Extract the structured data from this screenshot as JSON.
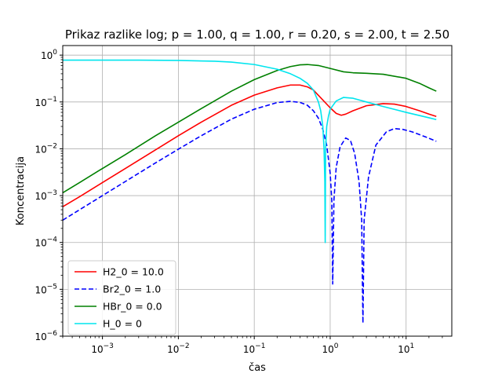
{
  "chart_data": {
    "type": "line",
    "title": "Prikaz razlike log; p = 1.00, q = 1.00, r = 0.20, s = 2.00, t = 2.50",
    "xlabel": "čas",
    "ylabel": "Koncentracija",
    "xscale": "log",
    "yscale": "log",
    "xlim": [
      0.0003,
      40
    ],
    "ylim": [
      1e-06,
      1.6
    ],
    "grid": true,
    "legend_position": "lower-left",
    "x_ticks": [
      {
        "value": 0.001,
        "base": "10",
        "exp": "−3"
      },
      {
        "value": 0.01,
        "base": "10",
        "exp": "−2"
      },
      {
        "value": 0.1,
        "base": "10",
        "exp": "−1"
      },
      {
        "value": 1,
        "base": "10",
        "exp": "0"
      },
      {
        "value": 10,
        "base": "10",
        "exp": "1"
      }
    ],
    "y_ticks": [
      {
        "value": 1e-06,
        "base": "10",
        "exp": "−6"
      },
      {
        "value": 1e-05,
        "base": "10",
        "exp": "−5"
      },
      {
        "value": 0.0001,
        "base": "10",
        "exp": "−4"
      },
      {
        "value": 0.001,
        "base": "10",
        "exp": "−3"
      },
      {
        "value": 0.01,
        "base": "10",
        "exp": "−2"
      },
      {
        "value": 0.1,
        "base": "10",
        "exp": "−1"
      },
      {
        "value": 1,
        "base": "10",
        "exp": "0"
      }
    ],
    "series": [
      {
        "name": "H2_0 = 10.0",
        "color": "#ff0000",
        "dash": "solid",
        "points": [
          [
            0.0003,
            0.00058
          ],
          [
            0.0005,
            0.00095
          ],
          [
            0.001,
            0.0019
          ],
          [
            0.002,
            0.0038
          ],
          [
            0.005,
            0.0095
          ],
          [
            0.01,
            0.019
          ],
          [
            0.02,
            0.037
          ],
          [
            0.05,
            0.085
          ],
          [
            0.1,
            0.14
          ],
          [
            0.2,
            0.2
          ],
          [
            0.3,
            0.23
          ],
          [
            0.4,
            0.23
          ],
          [
            0.5,
            0.21
          ],
          [
            0.6,
            0.18
          ],
          [
            0.8,
            0.11
          ],
          [
            1.0,
            0.075
          ],
          [
            1.2,
            0.057
          ],
          [
            1.4,
            0.052
          ],
          [
            1.6,
            0.055
          ],
          [
            2.0,
            0.065
          ],
          [
            3.0,
            0.083
          ],
          [
            5.0,
            0.092
          ],
          [
            7.0,
            0.09
          ],
          [
            10,
            0.08
          ],
          [
            15,
            0.065
          ],
          [
            20,
            0.055
          ],
          [
            25,
            0.049
          ]
        ]
      },
      {
        "name": " Br2_0 = 1.0",
        "color": "#0000ff",
        "dash": "dashed",
        "points": [
          [
            0.0003,
            0.0003
          ],
          [
            0.0005,
            0.0005
          ],
          [
            0.001,
            0.001
          ],
          [
            0.002,
            0.002
          ],
          [
            0.005,
            0.005
          ],
          [
            0.01,
            0.0098
          ],
          [
            0.02,
            0.019
          ],
          [
            0.05,
            0.043
          ],
          [
            0.1,
            0.07
          ],
          [
            0.2,
            0.097
          ],
          [
            0.3,
            0.103
          ],
          [
            0.4,
            0.098
          ],
          [
            0.5,
            0.085
          ],
          [
            0.6,
            0.065
          ],
          [
            0.7,
            0.045
          ],
          [
            0.8,
            0.026
          ],
          [
            0.9,
            0.012
          ],
          [
            1.0,
            0.003
          ],
          [
            1.05,
            0.0008
          ],
          [
            1.08,
            1.3e-05
          ],
          [
            1.12,
            0.0008
          ],
          [
            1.2,
            0.004
          ],
          [
            1.35,
            0.011
          ],
          [
            1.6,
            0.017
          ],
          [
            1.85,
            0.015
          ],
          [
            2.1,
            0.008
          ],
          [
            2.4,
            0.002
          ],
          [
            2.6,
            0.0003
          ],
          [
            2.7,
            1.9e-06
          ],
          [
            2.8,
            0.0003
          ],
          [
            3.2,
            0.0025
          ],
          [
            4.0,
            0.012
          ],
          [
            5.5,
            0.023
          ],
          [
            7.0,
            0.027
          ],
          [
            9.0,
            0.026
          ],
          [
            12,
            0.023
          ],
          [
            18,
            0.018
          ],
          [
            25,
            0.0145
          ]
        ]
      },
      {
        "name": "HBr_0 = 0.0",
        "color": "#008000",
        "dash": "solid",
        "points": [
          [
            0.0003,
            0.00115
          ],
          [
            0.0005,
            0.0019
          ],
          [
            0.001,
            0.0038
          ],
          [
            0.002,
            0.0075
          ],
          [
            0.005,
            0.019
          ],
          [
            0.01,
            0.037
          ],
          [
            0.02,
            0.072
          ],
          [
            0.05,
            0.17
          ],
          [
            0.1,
            0.3
          ],
          [
            0.2,
            0.47
          ],
          [
            0.3,
            0.57
          ],
          [
            0.4,
            0.62
          ],
          [
            0.5,
            0.63
          ],
          [
            0.7,
            0.6
          ],
          [
            1.0,
            0.52
          ],
          [
            1.5,
            0.44
          ],
          [
            2.0,
            0.42
          ],
          [
            3.0,
            0.41
          ],
          [
            5.0,
            0.39
          ],
          [
            10,
            0.32
          ],
          [
            15,
            0.25
          ],
          [
            20,
            0.2
          ],
          [
            25,
            0.17
          ]
        ]
      },
      {
        "name": "H_0 = 0",
        "color": "#00e5ee",
        "dash": "solid",
        "points": [
          [
            0.0003,
            0.78
          ],
          [
            0.001,
            0.78
          ],
          [
            0.003,
            0.78
          ],
          [
            0.01,
            0.77
          ],
          [
            0.03,
            0.74
          ],
          [
            0.05,
            0.71
          ],
          [
            0.1,
            0.63
          ],
          [
            0.2,
            0.5
          ],
          [
            0.3,
            0.4
          ],
          [
            0.4,
            0.32
          ],
          [
            0.5,
            0.25
          ],
          [
            0.6,
            0.18
          ],
          [
            0.7,
            0.1
          ],
          [
            0.75,
            0.065
          ],
          [
            0.8,
            0.03
          ],
          [
            0.83,
            0.01
          ],
          [
            0.85,
            0.002
          ],
          [
            0.86,
            0.0001
          ],
          [
            0.87,
            0.01
          ],
          [
            0.9,
            0.03
          ],
          [
            0.95,
            0.05
          ],
          [
            1.0,
            0.07
          ],
          [
            1.2,
            0.105
          ],
          [
            1.5,
            0.125
          ],
          [
            2.0,
            0.12
          ],
          [
            3.0,
            0.1
          ],
          [
            5.0,
            0.08
          ],
          [
            10,
            0.06
          ],
          [
            20,
            0.046
          ],
          [
            25,
            0.042
          ]
        ]
      }
    ]
  }
}
